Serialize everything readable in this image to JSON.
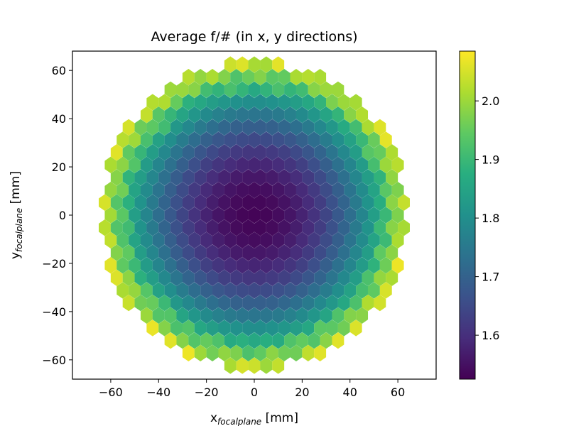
{
  "chart_data": {
    "type": "heatmap",
    "subtype": "hexbin",
    "title": "Average f/# (in x, y directions)",
    "xlabel": {
      "base": "x",
      "sub": "focalplane",
      "unit": " [mm]"
    },
    "ylabel": {
      "base": "y",
      "sub": "focalplane",
      "unit": " [mm]"
    },
    "xlim": [
      -76,
      76
    ],
    "ylim": [
      -68,
      68
    ],
    "xticks": [
      -60,
      -40,
      -20,
      0,
      20,
      40,
      60
    ],
    "yticks": [
      -60,
      -40,
      -20,
      0,
      20,
      40,
      60
    ],
    "colorbar": {
      "colormap": "viridis",
      "range": [
        1.525,
        2.085
      ],
      "ticks": [
        1.6,
        1.7,
        1.8,
        1.9,
        2.0
      ]
    },
    "hexgrid": {
      "dx": 5,
      "dy": 5.2,
      "radius_mm": 64
    },
    "field_model": {
      "center": 1.53,
      "edge": 2.03,
      "variation": "radial, ~quadratic",
      "circle_radius_mm": 64
    },
    "grid": false
  }
}
